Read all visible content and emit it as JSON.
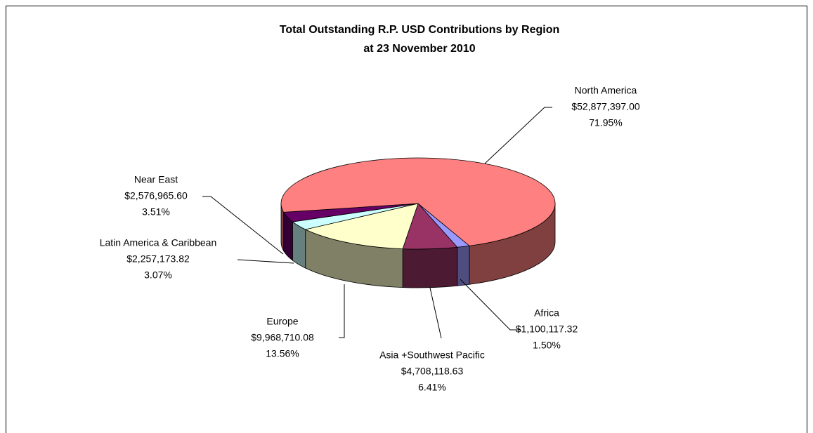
{
  "chart_data": {
    "type": "pie3d",
    "title": [
      "Total Outstanding R.P. USD Contributions by Region",
      "at 23 November 2010"
    ],
    "categories": [
      "Africa",
      "Asia +Southwest Pacific",
      "Europe",
      "Latin America & Caribbean",
      "Near East",
      "North America"
    ],
    "values": [
      1100117.32,
      4708118.63,
      9968710.08,
      2257173.82,
      2576965.6,
      52877397.0
    ],
    "value_labels": [
      "$1,100,117.32",
      "$4,708,118.63",
      "$9,968,710.08",
      "$2,257,173.82",
      "$2,576,965.60",
      "$52,877,397.00"
    ],
    "percentages": [
      1.5,
      6.41,
      13.56,
      3.07,
      3.51,
      71.95
    ],
    "percentage_labels": [
      "1.50%",
      "6.41%",
      "13.56%",
      "3.07%",
      "3.51%",
      "71.95%"
    ],
    "colors": [
      "#9999FF",
      "#993366",
      "#FFFFCC",
      "#CCFFFF",
      "#660066",
      "#FF8080"
    ],
    "side_colors": [
      "#4D4D80",
      "#4D1A33",
      "#808066",
      "#668080",
      "#330033",
      "#804040"
    ]
  }
}
